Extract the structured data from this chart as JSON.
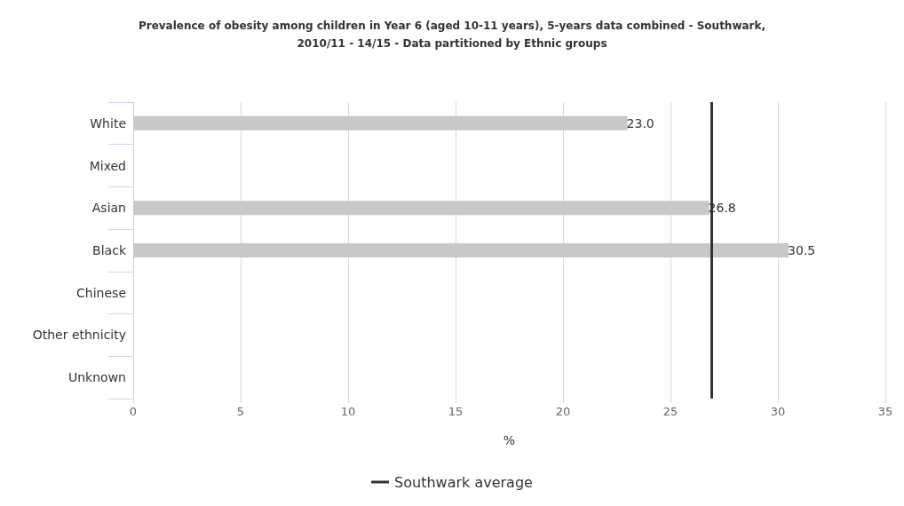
{
  "chart_data": {
    "type": "bar",
    "orientation": "horizontal",
    "title": "Prevalence of obesity among children in Year 6 (aged 10-11 years), 5-years data combined - Southwark,\n2010/11 - 14/15 - Data partitioned by Ethnic groups",
    "xlabel": "%",
    "categories": [
      "White",
      "Mixed",
      "Asian",
      "Black",
      "Chinese",
      "Other ethnicity",
      "Unknown"
    ],
    "values": [
      23.0,
      null,
      26.8,
      30.5,
      null,
      null,
      null
    ],
    "value_labels": [
      "23.0",
      null,
      "26.8",
      "30.5",
      null,
      null,
      null
    ],
    "color": "#c8c8c8",
    "xlim": [
      0,
      35
    ],
    "xticks": [
      0,
      5,
      10,
      15,
      20,
      25,
      30,
      35
    ],
    "grid": "x",
    "ref_lines": [
      {
        "axis": "x",
        "value": 26.9,
        "label": "Southwark average",
        "color": "#333333"
      }
    ],
    "legend": "bottom"
  }
}
